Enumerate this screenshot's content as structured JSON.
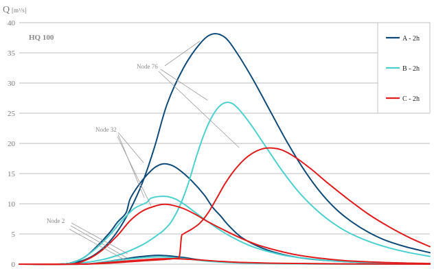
{
  "chart_data": {
    "type": "line",
    "ylabel": "Q",
    "yunit": "[m³/s]",
    "ylim": [
      0,
      40
    ],
    "yticks": [
      0,
      5,
      10,
      15,
      20,
      25,
      30,
      35,
      40
    ],
    "xlim": [
      0,
      100
    ],
    "grid": true,
    "legend_position": "top-right",
    "plot_label": "HQ 100",
    "annotations": [
      "Node 76",
      "Node 32",
      "Node 2"
    ],
    "colors": {
      "A - 2h": "#0d4a78",
      "B - 2h": "#4ad0cf",
      "C - 2h": "#e01c1c"
    },
    "series": [
      {
        "name": "A - 2h",
        "color": "#0d4a78",
        "curves": [
          {
            "node": "Node 76",
            "points": [
              [
                0,
                0
              ],
              [
                8,
                0
              ],
              [
                12,
                0.1
              ],
              [
                15,
                0.5
              ],
              [
                18,
                1.4
              ],
              [
                21,
                3
              ],
              [
                24,
                5.5
              ],
              [
                27,
                9
              ],
              [
                30,
                13.5
              ],
              [
                33,
                19.5
              ],
              [
                36,
                26.5
              ],
              [
                40,
                32.5
              ],
              [
                44,
                36.5
              ],
              [
                47,
                38.1
              ],
              [
                50,
                37.6
              ],
              [
                53,
                35
              ],
              [
                57,
                30.5
              ],
              [
                61,
                25.5
              ],
              [
                65,
                20.5
              ],
              [
                69,
                16
              ],
              [
                73,
                12.2
              ],
              [
                77,
                9.2
              ],
              [
                81,
                7
              ],
              [
                85,
                5.3
              ],
              [
                89,
                4
              ],
              [
                94,
                2.9
              ],
              [
                100,
                1.9
              ]
            ]
          },
          {
            "node": "Node 32",
            "points": [
              [
                0,
                0
              ],
              [
                10,
                0
              ],
              [
                13,
                0.3
              ],
              [
                16,
                1.2
              ],
              [
                19,
                3
              ],
              [
                22,
                5.2
              ],
              [
                24,
                7
              ],
              [
                26,
                8.5
              ],
              [
                27,
                10.8
              ],
              [
                29,
                13
              ],
              [
                31,
                14.7
              ],
              [
                33,
                16
              ],
              [
                35,
                16.6
              ],
              [
                37,
                16.4
              ],
              [
                39,
                15.6
              ],
              [
                42,
                13.8
              ],
              [
                45,
                11.5
              ],
              [
                47,
                9.5
              ],
              [
                49,
                8
              ],
              [
                51,
                6.4
              ],
              [
                54,
                4.5
              ],
              [
                58,
                3
              ],
              [
                62,
                2
              ],
              [
                67,
                1.2
              ],
              [
                73,
                0.7
              ],
              [
                80,
                0.4
              ],
              [
                90,
                0.2
              ],
              [
                100,
                0.1
              ]
            ]
          },
          {
            "node": "Node 2",
            "points": [
              [
                0,
                0
              ],
              [
                15,
                0
              ],
              [
                20,
                0.3
              ],
              [
                25,
                0.8
              ],
              [
                29,
                1.2
              ],
              [
                33,
                1.45
              ],
              [
                36,
                1.4
              ],
              [
                40,
                1.1
              ],
              [
                44,
                0.7
              ],
              [
                48,
                0.45
              ],
              [
                53,
                0.25
              ],
              [
                60,
                0.12
              ],
              [
                70,
                0.05
              ],
              [
                85,
                0.02
              ],
              [
                100,
                0
              ]
            ]
          }
        ]
      },
      {
        "name": "B - 2h",
        "color": "#4ad0cf",
        "curves": [
          {
            "node": "Node 76",
            "points": [
              [
                0,
                0
              ],
              [
                10,
                0
              ],
              [
                15,
                0.2
              ],
              [
                20,
                0.7
              ],
              [
                25,
                1.7
              ],
              [
                30,
                3.2
              ],
              [
                33,
                4.5
              ],
              [
                34,
                5
              ],
              [
                35,
                5.5
              ],
              [
                37,
                7
              ],
              [
                39,
                9.5
              ],
              [
                41,
                13
              ],
              [
                43,
                17.5
              ],
              [
                45,
                21.5
              ],
              [
                47,
                24.5
              ],
              [
                49,
                26.3
              ],
              [
                51,
                26.8
              ],
              [
                53,
                26
              ],
              [
                56,
                23.5
              ],
              [
                60,
                19.5
              ],
              [
                64,
                15.5
              ],
              [
                68,
                12
              ],
              [
                72,
                9.2
              ],
              [
                76,
                7
              ],
              [
                80,
                5.3
              ],
              [
                85,
                3.8
              ],
              [
                90,
                2.7
              ],
              [
                95,
                1.9
              ],
              [
                100,
                1.3
              ]
            ]
          },
          {
            "node": "Node 32",
            "points": [
              [
                0,
                0
              ],
              [
                10,
                0
              ],
              [
                14,
                0.5
              ],
              [
                18,
                2.2
              ],
              [
                22,
                4.8
              ],
              [
                25,
                7.2
              ],
              [
                28,
                9.2
              ],
              [
                31,
                10.2
              ],
              [
                32,
                10.9
              ],
              [
                34,
                11.2
              ],
              [
                36,
                11.2
              ],
              [
                38,
                10.8
              ],
              [
                40,
                10
              ],
              [
                43,
                8.5
              ],
              [
                46,
                7
              ],
              [
                49,
                5.6
              ],
              [
                52,
                4.4
              ],
              [
                56,
                3.1
              ],
              [
                60,
                2.2
              ],
              [
                65,
                1.4
              ],
              [
                72,
                0.8
              ],
              [
                80,
                0.4
              ],
              [
                90,
                0.2
              ],
              [
                100,
                0.1
              ]
            ]
          },
          {
            "node": "Node 2",
            "points": [
              [
                0,
                0
              ],
              [
                15,
                0
              ],
              [
                20,
                0.3
              ],
              [
                25,
                0.7
              ],
              [
                30,
                1.05
              ],
              [
                34,
                1.2
              ],
              [
                37,
                1.1
              ],
              [
                41,
                0.85
              ],
              [
                45,
                0.55
              ],
              [
                50,
                0.3
              ],
              [
                56,
                0.15
              ],
              [
                65,
                0.06
              ],
              [
                80,
                0.02
              ],
              [
                100,
                0
              ]
            ]
          }
        ]
      },
      {
        "name": "C - 2h",
        "color": "#e01c1c",
        "curves": [
          {
            "node": "Node 76",
            "points": [
              [
                0,
                0
              ],
              [
                15,
                0
              ],
              [
                20,
                0.1
              ],
              [
                25,
                0.3
              ],
              [
                30,
                0.55
              ],
              [
                35,
                0.75
              ],
              [
                38,
                0.95
              ],
              [
                39,
                1.3
              ],
              [
                39.5,
                4.5
              ],
              [
                40,
                5
              ],
              [
                42,
                5.8
              ],
              [
                44,
                6.8
              ],
              [
                46,
                8.5
              ],
              [
                48,
                10.8
              ],
              [
                50,
                13.2
              ],
              [
                52,
                15.2
              ],
              [
                54,
                16.8
              ],
              [
                56,
                18
              ],
              [
                58,
                18.8
              ],
              [
                60,
                19.2
              ],
              [
                62,
                19.2
              ],
              [
                64,
                18.9
              ],
              [
                67,
                17.8
              ],
              [
                71,
                15.8
              ],
              [
                75,
                13.5
              ],
              [
                80,
                10.8
              ],
              [
                85,
                8.3
              ],
              [
                90,
                6.2
              ],
              [
                95,
                4.4
              ],
              [
                100,
                2.9
              ]
            ]
          },
          {
            "node": "Node 32",
            "points": [
              [
                0,
                0
              ],
              [
                12,
                0
              ],
              [
                16,
                0.6
              ],
              [
                20,
                2.2
              ],
              [
                24,
                4.8
              ],
              [
                27,
                7.2
              ],
              [
                30,
                8.8
              ],
              [
                33,
                9.6
              ],
              [
                35,
                9.9
              ],
              [
                37,
                9.8
              ],
              [
                40,
                9.2
              ],
              [
                43,
                8.2
              ],
              [
                46,
                7
              ],
              [
                50,
                5.6
              ],
              [
                54,
                4.3
              ],
              [
                58,
                3.2
              ],
              [
                62,
                2.4
              ],
              [
                67,
                1.6
              ],
              [
                73,
                1
              ],
              [
                80,
                0.55
              ],
              [
                90,
                0.25
              ],
              [
                100,
                0.1
              ]
            ]
          },
          {
            "node": "Node 2",
            "points": [
              [
                0,
                0
              ],
              [
                15,
                0
              ],
              [
                20,
                0.2
              ],
              [
                25,
                0.45
              ],
              [
                30,
                0.7
              ],
              [
                34,
                0.88
              ],
              [
                38,
                0.9
              ],
              [
                42,
                0.78
              ],
              [
                46,
                0.6
              ],
              [
                50,
                0.42
              ],
              [
                56,
                0.25
              ],
              [
                65,
                0.12
              ],
              [
                80,
                0.04
              ],
              [
                100,
                0
              ]
            ]
          }
        ]
      }
    ]
  }
}
